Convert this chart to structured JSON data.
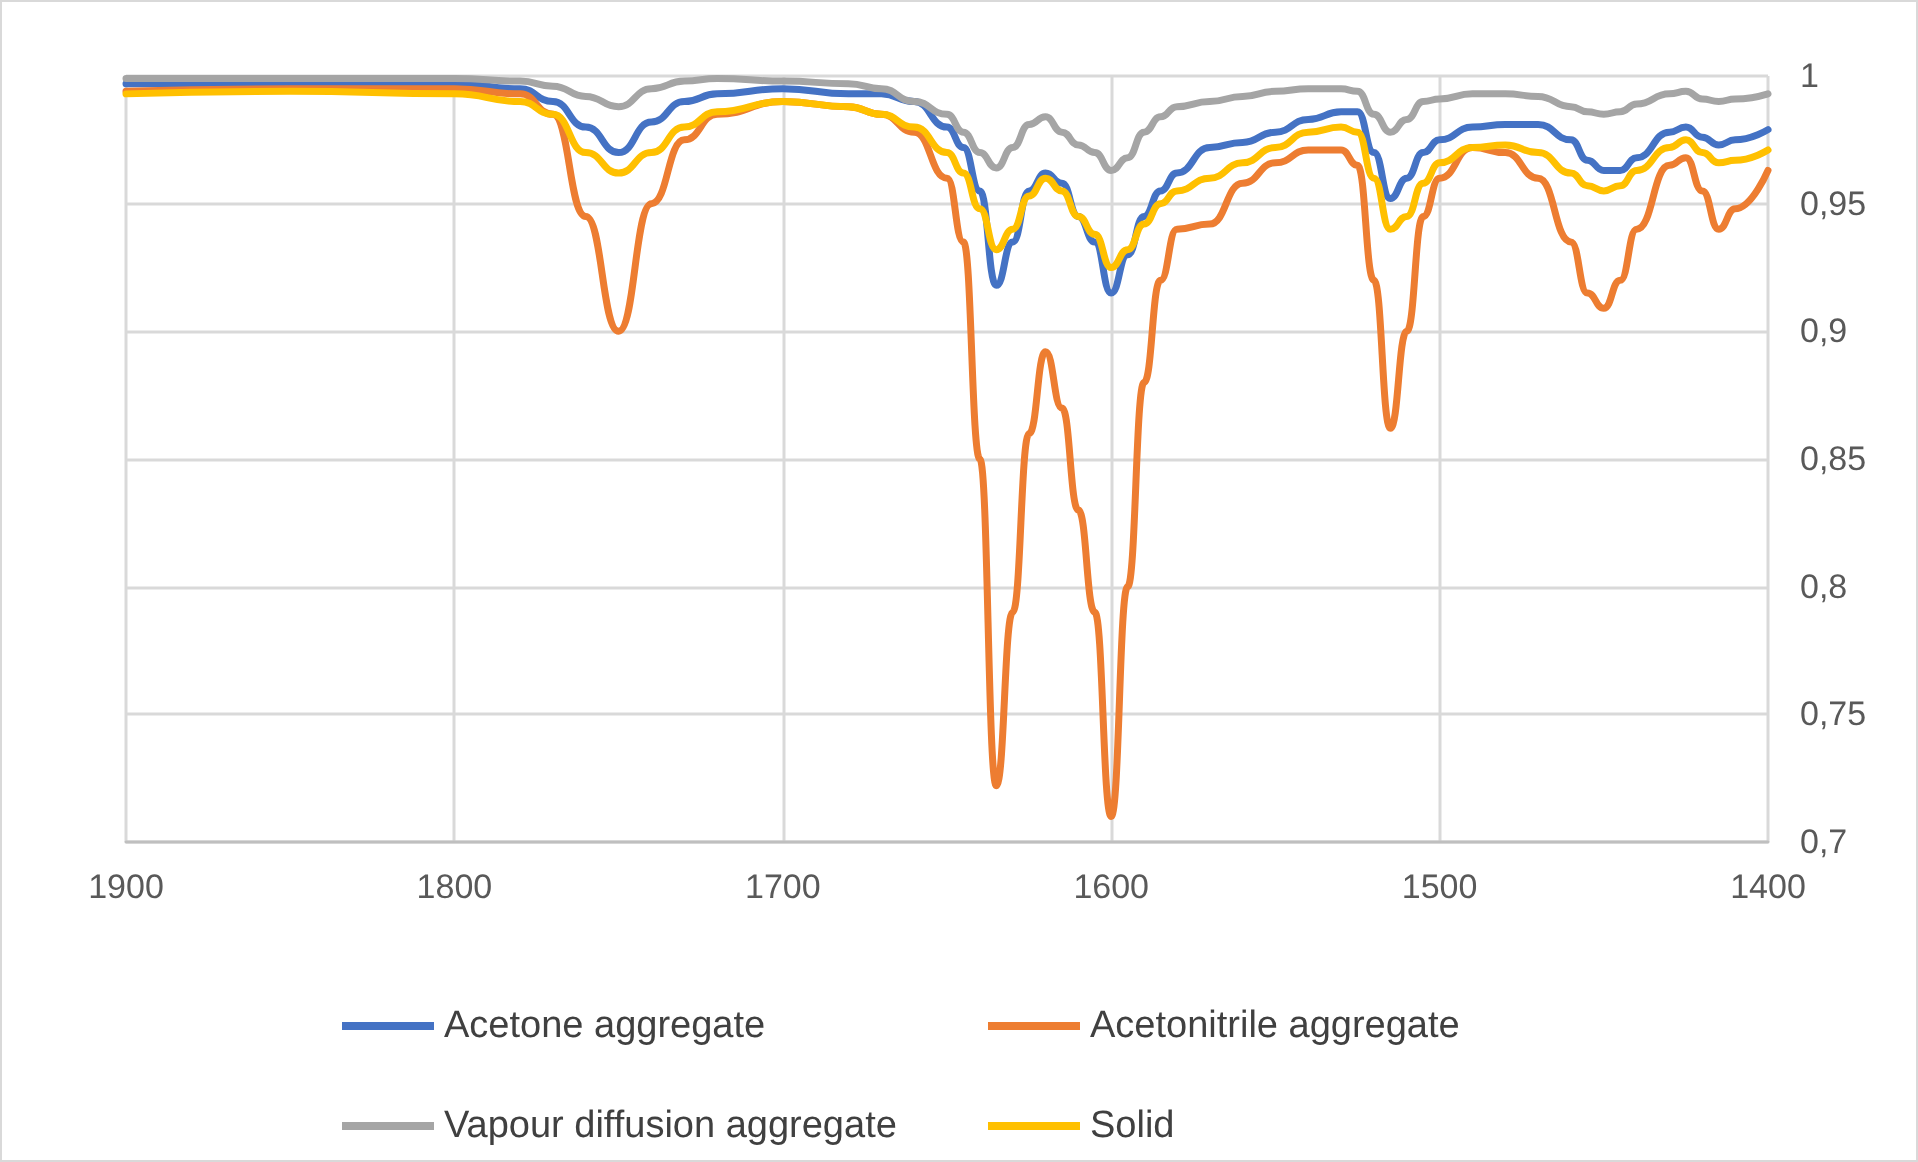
{
  "chart_data": {
    "type": "line",
    "xlim": [
      1900,
      1400
    ],
    "xticks": [
      1900,
      1800,
      1700,
      1600,
      1500,
      1400
    ],
    "ylim": [
      0.7,
      1
    ],
    "yticks": [
      {
        "value": 0.7,
        "label": "0,7"
      },
      {
        "value": 0.75,
        "label": "0,75"
      },
      {
        "value": 0.8,
        "label": "0,8"
      },
      {
        "value": 0.85,
        "label": "0,85"
      },
      {
        "value": 0.9,
        "label": "0,9"
      },
      {
        "value": 0.95,
        "label": "0,95"
      },
      1
    ],
    "grid": true,
    "legend": "bottom",
    "marker": "none",
    "line_style": "solid",
    "x": [
      1900,
      1850,
      1800,
      1780,
      1770,
      1760,
      1750,
      1740,
      1730,
      1720,
      1700,
      1680,
      1670,
      1660,
      1650,
      1645,
      1640,
      1635,
      1630,
      1625,
      1620,
      1615,
      1610,
      1605,
      1600,
      1595,
      1590,
      1585,
      1580,
      1570,
      1560,
      1550,
      1540,
      1530,
      1525,
      1520,
      1515,
      1510,
      1505,
      1500,
      1490,
      1480,
      1470,
      1460,
      1455,
      1450,
      1445,
      1440,
      1430,
      1425,
      1420,
      1415,
      1410,
      1400
    ],
    "series": [
      {
        "name": "Acetone aggregate",
        "color": "#4472c4",
        "values": [
          0.997,
          0.997,
          0.997,
          0.995,
          0.99,
          0.98,
          0.97,
          0.982,
          0.99,
          0.993,
          0.995,
          0.993,
          0.993,
          0.99,
          0.98,
          0.972,
          0.955,
          0.918,
          0.935,
          0.955,
          0.962,
          0.958,
          0.945,
          0.935,
          0.915,
          0.93,
          0.945,
          0.955,
          0.962,
          0.972,
          0.974,
          0.978,
          0.983,
          0.986,
          0.986,
          0.97,
          0.952,
          0.96,
          0.97,
          0.975,
          0.98,
          0.981,
          0.981,
          0.975,
          0.967,
          0.963,
          0.963,
          0.968,
          0.978,
          0.98,
          0.976,
          0.973,
          0.975,
          0.979
        ]
      },
      {
        "name": "Acetonitrile aggregate",
        "color": "#ed7d31",
        "values": [
          0.994,
          0.995,
          0.995,
          0.993,
          0.985,
          0.945,
          0.9,
          0.95,
          0.975,
          0.985,
          0.99,
          0.988,
          0.985,
          0.978,
          0.96,
          0.935,
          0.85,
          0.722,
          0.79,
          0.86,
          0.892,
          0.87,
          0.83,
          0.79,
          0.71,
          0.8,
          0.88,
          0.92,
          0.94,
          0.942,
          0.958,
          0.966,
          0.971,
          0.971,
          0.965,
          0.92,
          0.862,
          0.9,
          0.945,
          0.96,
          0.972,
          0.97,
          0.96,
          0.935,
          0.915,
          0.909,
          0.92,
          0.94,
          0.965,
          0.968,
          0.955,
          0.94,
          0.948,
          0.963
        ]
      },
      {
        "name": "Vapour diffusion aggregate",
        "color": "#a5a5a5",
        "values": [
          0.999,
          0.999,
          0.999,
          0.998,
          0.996,
          0.992,
          0.988,
          0.995,
          0.998,
          0.999,
          0.998,
          0.997,
          0.995,
          0.99,
          0.985,
          0.978,
          0.97,
          0.964,
          0.972,
          0.981,
          0.984,
          0.978,
          0.973,
          0.97,
          0.963,
          0.968,
          0.978,
          0.984,
          0.988,
          0.99,
          0.992,
          0.994,
          0.995,
          0.995,
          0.994,
          0.985,
          0.978,
          0.983,
          0.99,
          0.991,
          0.993,
          0.993,
          0.992,
          0.988,
          0.986,
          0.985,
          0.986,
          0.989,
          0.993,
          0.994,
          0.991,
          0.99,
          0.991,
          0.993
        ]
      },
      {
        "name": "Solid",
        "color": "#ffc000",
        "values": [
          0.993,
          0.994,
          0.993,
          0.99,
          0.985,
          0.97,
          0.962,
          0.97,
          0.98,
          0.986,
          0.99,
          0.988,
          0.985,
          0.98,
          0.97,
          0.962,
          0.948,
          0.932,
          0.94,
          0.953,
          0.96,
          0.955,
          0.945,
          0.938,
          0.925,
          0.932,
          0.942,
          0.95,
          0.955,
          0.96,
          0.966,
          0.972,
          0.978,
          0.98,
          0.978,
          0.96,
          0.94,
          0.945,
          0.958,
          0.966,
          0.972,
          0.973,
          0.97,
          0.962,
          0.957,
          0.955,
          0.957,
          0.963,
          0.972,
          0.975,
          0.97,
          0.966,
          0.967,
          0.971
        ]
      }
    ]
  }
}
